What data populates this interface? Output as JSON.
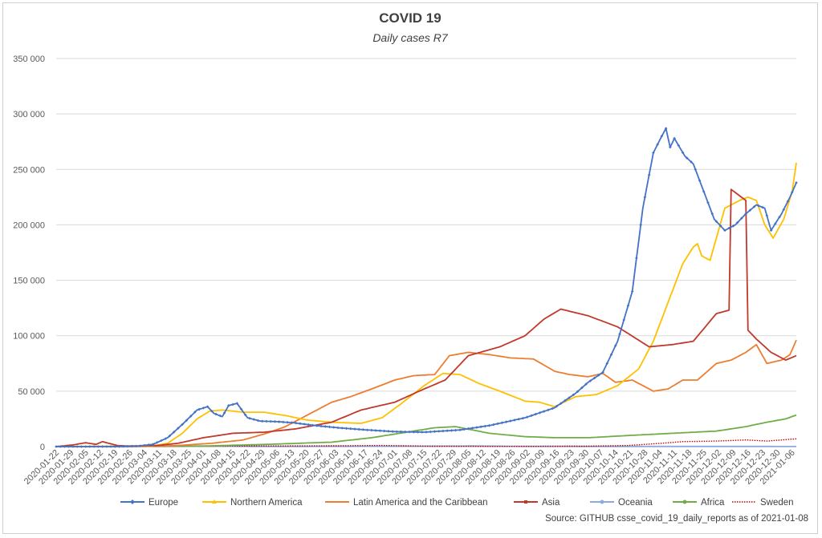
{
  "chart_data": {
    "type": "line",
    "title": "COVID 19",
    "subtitle": "Daily cases R7",
    "source": "Source: GITHUB csse_covid_19_daily_reports  as of 2021-01-08",
    "xlabel": "",
    "ylabel": "",
    "ylim": [
      0,
      350000
    ],
    "yticks": [
      0,
      50000,
      100000,
      150000,
      200000,
      250000,
      300000,
      350000
    ],
    "ytick_labels": [
      "0",
      "50 000",
      "100 000",
      "150 000",
      "200 000",
      "250 000",
      "300 000",
      "350 000"
    ],
    "x_start": "2020-01-22",
    "x_end": "2021-01-08",
    "x_tick_labels": [
      "2020-01-22",
      "2020-01-29",
      "2020-02-05",
      "2020-02-12",
      "2020-02-19",
      "2020-02-26",
      "2020-03-04",
      "2020-03-11",
      "2020-03-18",
      "2020-03-25",
      "2020-04-01",
      "2020-04-08",
      "2020-04-15",
      "2020-04-22",
      "2020-04-29",
      "2020-05-06",
      "2020-05-13",
      "2020-05-20",
      "2020-05-27",
      "2020-06-03",
      "2020-06-10",
      "2020-06-17",
      "2020-06-24",
      "2020-07-01",
      "2020-07-08",
      "2020-07-15",
      "2020-07-22",
      "2020-07-29",
      "2020-08-05",
      "2020-08-12",
      "2020-08-19",
      "2020-08-26",
      "2020-09-02",
      "2020-09-09",
      "2020-09-16",
      "2020-09-23",
      "2020-09-30",
      "2020-10-07",
      "2020-10-14",
      "2020-10-21",
      "2020-10-28",
      "2020-11-04",
      "2020-11-11",
      "2020-11-18",
      "2020-11-25",
      "2020-12-02",
      "2020-12-09",
      "2020-12-16",
      "2020-12-23",
      "2020-12-30",
      "2021-01-06"
    ],
    "grid": true,
    "legend_position": "bottom",
    "series": [
      {
        "name": "Europe",
        "color": "#4472C4",
        "marker": "diamond",
        "x": [
          "2020-01-22",
          "2020-02-20",
          "2020-03-01",
          "2020-03-08",
          "2020-03-15",
          "2020-03-22",
          "2020-03-29",
          "2020-04-03",
          "2020-04-06",
          "2020-04-10",
          "2020-04-13",
          "2020-04-17",
          "2020-04-22",
          "2020-04-28",
          "2020-05-06",
          "2020-05-14",
          "2020-05-24",
          "2020-06-04",
          "2020-06-18",
          "2020-07-01",
          "2020-07-15",
          "2020-08-01",
          "2020-08-15",
          "2020-09-01",
          "2020-09-15",
          "2020-09-25",
          "2020-10-01",
          "2020-10-08",
          "2020-10-15",
          "2020-10-22",
          "2020-10-27",
          "2020-11-01",
          "2020-11-05",
          "2020-11-07",
          "2020-11-09",
          "2020-11-11",
          "2020-11-16",
          "2020-11-20",
          "2020-11-25",
          "2020-11-30",
          "2020-12-05",
          "2020-12-10",
          "2020-12-15",
          "2020-12-20",
          "2020-12-24",
          "2020-12-27",
          "2021-01-01",
          "2021-01-05",
          "2021-01-08"
        ],
        "values": [
          0,
          0,
          500,
          2000,
          8000,
          20000,
          33000,
          36000,
          30000,
          27000,
          37000,
          39000,
          26000,
          23000,
          22500,
          21500,
          19000,
          17000,
          15000,
          13500,
          13000,
          15000,
          19000,
          26000,
          35000,
          48000,
          58000,
          67000,
          95000,
          140000,
          215000,
          265000,
          280000,
          287000,
          270000,
          278000,
          262000,
          255000,
          230000,
          205000,
          195000,
          200000,
          210000,
          218000,
          215000,
          195000,
          210000,
          225000,
          238000
        ]
      },
      {
        "name": "Northern America",
        "color": "#FFC000",
        "marker": "triangle",
        "x": [
          "2020-01-22",
          "2020-03-08",
          "2020-03-15",
          "2020-03-22",
          "2020-03-29",
          "2020-04-04",
          "2020-04-10",
          "2020-04-20",
          "2020-04-30",
          "2020-05-10",
          "2020-05-20",
          "2020-06-01",
          "2020-06-15",
          "2020-06-25",
          "2020-07-05",
          "2020-07-15",
          "2020-07-24",
          "2020-08-01",
          "2020-08-10",
          "2020-08-20",
          "2020-09-01",
          "2020-09-08",
          "2020-09-15",
          "2020-09-25",
          "2020-10-05",
          "2020-10-15",
          "2020-10-25",
          "2020-11-01",
          "2020-11-08",
          "2020-11-15",
          "2020-11-20",
          "2020-11-22",
          "2020-11-24",
          "2020-11-28",
          "2020-12-05",
          "2020-12-12",
          "2020-12-16",
          "2020-12-20",
          "2020-12-24",
          "2020-12-28",
          "2021-01-02",
          "2021-01-06",
          "2021-01-08"
        ],
        "values": [
          0,
          500,
          3000,
          12000,
          25000,
          32000,
          33000,
          31000,
          31000,
          28000,
          24000,
          22000,
          21000,
          26000,
          40000,
          55000,
          66000,
          65000,
          57000,
          50000,
          41000,
          40000,
          36000,
          45000,
          47000,
          55000,
          70000,
          95000,
          130000,
          165000,
          180000,
          183000,
          172000,
          168000,
          215000,
          222000,
          225000,
          222000,
          200000,
          188000,
          205000,
          230000,
          256000
        ]
      },
      {
        "name": "Latin America and the Caribbean",
        "color": "#ED7D31",
        "marker": "dash",
        "x": [
          "2020-01-22",
          "2020-03-01",
          "2020-03-20",
          "2020-04-05",
          "2020-04-20",
          "2020-05-01",
          "2020-05-10",
          "2020-05-20",
          "2020-06-01",
          "2020-06-10",
          "2020-06-20",
          "2020-07-01",
          "2020-07-10",
          "2020-07-20",
          "2020-07-27",
          "2020-08-05",
          "2020-08-15",
          "2020-08-25",
          "2020-09-05",
          "2020-09-15",
          "2020-09-22",
          "2020-10-01",
          "2020-10-08",
          "2020-10-14",
          "2020-10-22",
          "2020-11-01",
          "2020-11-08",
          "2020-11-15",
          "2020-11-22",
          "2020-12-01",
          "2020-12-08",
          "2020-12-15",
          "2020-12-20",
          "2020-12-25",
          "2021-01-01",
          "2021-01-05",
          "2021-01-08"
        ],
        "values": [
          0,
          0,
          1000,
          3000,
          6000,
          12000,
          18000,
          28000,
          40000,
          45000,
          52000,
          60000,
          64000,
          65000,
          82000,
          85000,
          83000,
          80000,
          79000,
          68000,
          65000,
          63000,
          66000,
          58000,
          60000,
          50000,
          52000,
          60000,
          60000,
          75000,
          78000,
          85000,
          92000,
          75000,
          78000,
          83000,
          96000
        ]
      },
      {
        "name": "Asia",
        "color": "#C0392B",
        "marker": "square",
        "x": [
          "2020-01-22",
          "2020-01-30",
          "2020-02-05",
          "2020-02-10",
          "2020-02-13",
          "2020-02-16",
          "2020-02-20",
          "2020-02-25",
          "2020-03-10",
          "2020-03-20",
          "2020-04-01",
          "2020-04-15",
          "2020-04-30",
          "2020-05-15",
          "2020-06-01",
          "2020-06-15",
          "2020-07-01",
          "2020-07-15",
          "2020-07-25",
          "2020-08-05",
          "2020-08-20",
          "2020-09-01",
          "2020-09-10",
          "2020-09-18",
          "2020-10-01",
          "2020-10-15",
          "2020-10-30",
          "2020-11-10",
          "2020-11-20",
          "2020-12-01",
          "2020-12-07",
          "2020-12-08",
          "2020-12-15",
          "2020-12-16",
          "2020-12-20",
          "2020-12-27",
          "2021-01-03",
          "2021-01-08"
        ],
        "values": [
          0,
          1500,
          3500,
          2000,
          4500,
          3000,
          1000,
          500,
          1000,
          3000,
          8000,
          12000,
          13000,
          16000,
          22000,
          33000,
          40000,
          52000,
          60000,
          82000,
          90000,
          100000,
          115000,
          124000,
          118000,
          108000,
          90000,
          92000,
          95000,
          120000,
          123000,
          232000,
          222000,
          105000,
          97000,
          85000,
          78000,
          82000
        ]
      },
      {
        "name": "Oceania",
        "color": "#8EA9DB",
        "marker": "circle",
        "x": [
          "2020-01-22",
          "2020-03-20",
          "2020-04-01",
          "2020-05-01",
          "2020-07-20",
          "2020-08-10",
          "2020-09-01",
          "2021-01-08"
        ],
        "values": [
          0,
          200,
          400,
          100,
          400,
          500,
          200,
          100
        ]
      },
      {
        "name": "Africa",
        "color": "#70AD47",
        "marker": "circle",
        "x": [
          "2020-01-22",
          "2020-04-01",
          "2020-05-01",
          "2020-06-01",
          "2020-06-20",
          "2020-07-10",
          "2020-07-20",
          "2020-07-30",
          "2020-08-15",
          "2020-09-01",
          "2020-09-15",
          "2020-10-01",
          "2020-10-20",
          "2020-11-10",
          "2020-12-01",
          "2020-12-15",
          "2020-12-25",
          "2021-01-03",
          "2021-01-08"
        ],
        "values": [
          0,
          500,
          2000,
          4000,
          8000,
          14000,
          17000,
          18000,
          12000,
          9000,
          8000,
          8000,
          10000,
          12000,
          14000,
          18000,
          22000,
          25000,
          28500
        ]
      },
      {
        "name": "Sweden",
        "color": "#C00000",
        "marker": "dotted",
        "x": [
          "2020-01-22",
          "2020-03-20",
          "2020-04-15",
          "2020-06-01",
          "2020-06-25",
          "2020-07-20",
          "2020-09-01",
          "2020-10-01",
          "2020-10-20",
          "2020-11-01",
          "2020-11-15",
          "2020-12-01",
          "2020-12-15",
          "2020-12-25",
          "2021-01-08"
        ],
        "values": [
          0,
          200,
          500,
          700,
          1000,
          300,
          200,
          400,
          1000,
          2500,
          4500,
          5000,
          6000,
          5000,
          7000
        ]
      }
    ]
  }
}
